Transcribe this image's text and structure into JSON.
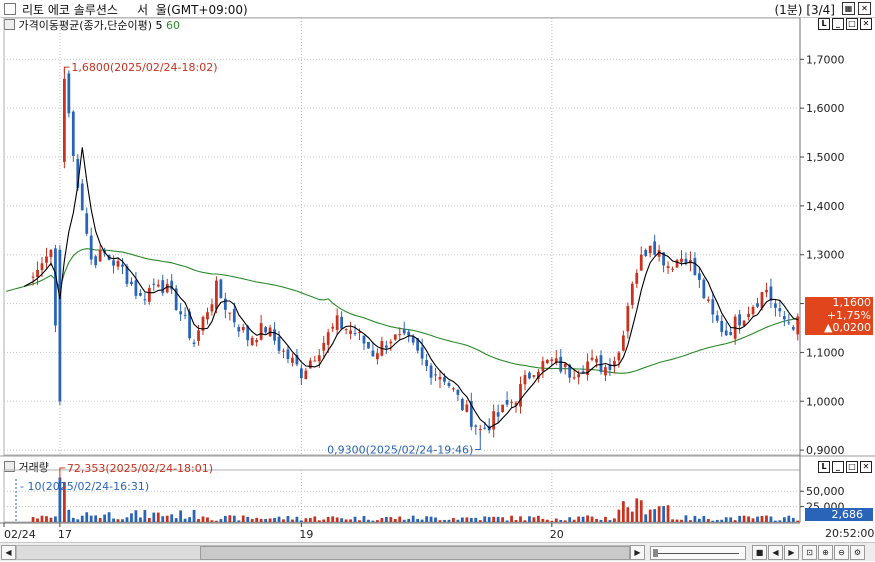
{
  "window": {
    "title": "리토 에코 솔루션스     서  울(GMT+09:00)",
    "interval_label": "(1분)",
    "page_label": "[3/4]"
  },
  "price_pane": {
    "legend_label": "가격이동평균(종가,단순이평)",
    "legend_ma1": "5",
    "legend_ma2": "60",
    "ma_short_color": "#000000",
    "ma_long_color": "#2a8a2a",
    "high_annotation": "1,6800(2025/02/24-18:02)",
    "low_annotation": "0,9300(2025/02/24-19:46)",
    "price_box": {
      "price": "1,1600",
      "change_pct": "+1,75%",
      "change_abs": "▲0,0200",
      "color": "#e0451b"
    }
  },
  "volume_pane": {
    "legend_label": "거래량",
    "high_annotation": "72,353(2025/02/24-18:01)",
    "low_annotation": "10(2025/02/24-16:31)",
    "current_value": "2,686",
    "up_color": "#c8321e",
    "down_color": "#2a64b8"
  },
  "x_axis": {
    "labels": [
      {
        "text": "02/24",
        "slot": 0
      },
      {
        "text": "17",
        "slot": 12
      },
      {
        "text": "19",
        "slot": 66
      },
      {
        "text": "20",
        "slot": 122
      }
    ],
    "time_readout": "20:52:00"
  },
  "chart_data": [
    {
      "type": "candlestick",
      "title": "",
      "ylim": [
        0.89,
        1.76
      ],
      "yticks": [
        "1,7000",
        "1,6000",
        "1,5000",
        "1,4000",
        "1,3000",
        "1,2000",
        "1,1000",
        "1,0000",
        "0,9000"
      ],
      "ytick_values": [
        1.7,
        1.6,
        1.5,
        1.4,
        1.3,
        1.2,
        1.1,
        1.0,
        0.9
      ],
      "anchors": [
        [
          0,
          1.225
        ],
        [
          6,
          1.255
        ],
        [
          10,
          1.31
        ],
        [
          12,
          1.0
        ],
        [
          13,
          1.68
        ],
        [
          15,
          1.5
        ],
        [
          17,
          1.4
        ],
        [
          19,
          1.29
        ],
        [
          22,
          1.3
        ],
        [
          26,
          1.27
        ],
        [
          30,
          1.21
        ],
        [
          34,
          1.25
        ],
        [
          38,
          1.2
        ],
        [
          42,
          1.12
        ],
        [
          45,
          1.19
        ],
        [
          47,
          1.23
        ],
        [
          50,
          1.18
        ],
        [
          54,
          1.13
        ],
        [
          58,
          1.15
        ],
        [
          62,
          1.1
        ],
        [
          66,
          1.06
        ],
        [
          70,
          1.11
        ],
        [
          74,
          1.16
        ],
        [
          78,
          1.14
        ],
        [
          82,
          1.1
        ],
        [
          86,
          1.13
        ],
        [
          90,
          1.12
        ],
        [
          94,
          1.07
        ],
        [
          98,
          1.05
        ],
        [
          102,
          0.99
        ],
        [
          106,
          0.94
        ],
        [
          110,
          0.97
        ],
        [
          114,
          1.01
        ],
        [
          118,
          1.07
        ],
        [
          122,
          1.08
        ],
        [
          126,
          1.06
        ],
        [
          130,
          1.08
        ],
        [
          134,
          1.07
        ],
        [
          137,
          1.1
        ],
        [
          140,
          1.25
        ],
        [
          144,
          1.33
        ],
        [
          148,
          1.28
        ],
        [
          152,
          1.3
        ],
        [
          155,
          1.24
        ],
        [
          158,
          1.17
        ],
        [
          161,
          1.14
        ],
        [
          164,
          1.17
        ],
        [
          167,
          1.2
        ],
        [
          170,
          1.23
        ],
        [
          173,
          1.17
        ],
        [
          176,
          1.16
        ]
      ],
      "volume_ylim": [
        0,
        78000
      ],
      "volume_yticks": [
        "50,000",
        "25,000"
      ],
      "volume_ytick_values": [
        50000,
        25000
      ]
    }
  ]
}
